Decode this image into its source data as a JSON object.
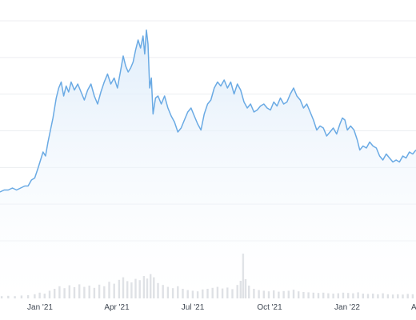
{
  "chart_data": {
    "type": "line",
    "title": "",
    "xlabel": "",
    "ylabel": "",
    "x_ticks": [
      "Jan '21",
      "Apr '21",
      "Jul '21",
      "Oct '21",
      "Jan '22",
      "A"
    ],
    "y_gridlines": 7,
    "grid": true,
    "legend": "none",
    "colors": {
      "line": "#6aaae4",
      "area_top": "#dcebfa",
      "area_bottom": "#ffffff",
      "volume": "#d6d9de",
      "grid": "#eceef1",
      "axis_text": "#3f4752"
    },
    "x_range": [
      "2020-11-18",
      "2022-04-05"
    ],
    "price_range": [
      -1.0,
      10.0
    ],
    "series": [
      {
        "values": [
          [
            "2020-11-18",
            1.4
          ],
          [
            "2020-11-23",
            1.5
          ],
          [
            "2020-11-28",
            1.5
          ],
          [
            "2020-12-03",
            1.6
          ],
          [
            "2020-12-08",
            1.5
          ],
          [
            "2020-12-13",
            1.6
          ],
          [
            "2020-12-18",
            1.7
          ],
          [
            "2020-12-22",
            1.7
          ],
          [
            "2020-12-26",
            2.0
          ],
          [
            "2020-12-30",
            2.1
          ],
          [
            "2021-01-03",
            2.6
          ],
          [
            "2021-01-06",
            3.0
          ],
          [
            "2021-01-09",
            3.4
          ],
          [
            "2021-01-12",
            3.2
          ],
          [
            "2021-01-15",
            3.9
          ],
          [
            "2021-01-18",
            4.5
          ],
          [
            "2021-01-21",
            5.1
          ],
          [
            "2021-01-25",
            6.1
          ],
          [
            "2021-01-28",
            6.6
          ],
          [
            "2021-01-31",
            6.9
          ],
          [
            "2021-02-03",
            6.2
          ],
          [
            "2021-02-06",
            6.7
          ],
          [
            "2021-02-09",
            6.4
          ],
          [
            "2021-02-12",
            6.9
          ],
          [
            "2021-02-16",
            6.5
          ],
          [
            "2021-02-20",
            6.8
          ],
          [
            "2021-02-24",
            6.4
          ],
          [
            "2021-02-28",
            6.0
          ],
          [
            "2021-03-04",
            6.5
          ],
          [
            "2021-03-08",
            6.8
          ],
          [
            "2021-03-12",
            6.2
          ],
          [
            "2021-03-16",
            5.8
          ],
          [
            "2021-03-20",
            6.4
          ],
          [
            "2021-03-24",
            6.9
          ],
          [
            "2021-03-28",
            7.3
          ],
          [
            "2021-04-01",
            6.8
          ],
          [
            "2021-04-05",
            7.1
          ],
          [
            "2021-04-09",
            6.6
          ],
          [
            "2021-04-13",
            7.5
          ],
          [
            "2021-04-16",
            8.2
          ],
          [
            "2021-04-19",
            7.7
          ],
          [
            "2021-04-22",
            7.4
          ],
          [
            "2021-04-25",
            7.6
          ],
          [
            "2021-04-28",
            7.9
          ],
          [
            "2021-05-01",
            8.5
          ],
          [
            "2021-05-04",
            9.0
          ],
          [
            "2021-05-07",
            8.6
          ],
          [
            "2021-05-10",
            9.2
          ],
          [
            "2021-05-12",
            8.3
          ],
          [
            "2021-05-14",
            9.5
          ],
          [
            "2021-05-16",
            8.8
          ],
          [
            "2021-05-18",
            6.6
          ],
          [
            "2021-05-20",
            7.1
          ],
          [
            "2021-05-22",
            5.3
          ],
          [
            "2021-05-25",
            6.1
          ],
          [
            "2021-05-28",
            6.2
          ],
          [
            "2021-06-01",
            5.8
          ],
          [
            "2021-06-05",
            6.2
          ],
          [
            "2021-06-09",
            5.6
          ],
          [
            "2021-06-13",
            5.2
          ],
          [
            "2021-06-17",
            4.9
          ],
          [
            "2021-06-21",
            4.4
          ],
          [
            "2021-06-25",
            4.6
          ],
          [
            "2021-06-29",
            5.0
          ],
          [
            "2021-07-03",
            5.4
          ],
          [
            "2021-07-07",
            5.6
          ],
          [
            "2021-07-11",
            5.2
          ],
          [
            "2021-07-15",
            4.8
          ],
          [
            "2021-07-19",
            4.5
          ],
          [
            "2021-07-23",
            5.3
          ],
          [
            "2021-07-27",
            5.8
          ],
          [
            "2021-07-31",
            6.0
          ],
          [
            "2021-08-04",
            6.6
          ],
          [
            "2021-08-08",
            6.9
          ],
          [
            "2021-08-12",
            6.7
          ],
          [
            "2021-08-16",
            7.0
          ],
          [
            "2021-08-20",
            6.6
          ],
          [
            "2021-08-24",
            6.9
          ],
          [
            "2021-08-28",
            6.3
          ],
          [
            "2021-09-01",
            6.8
          ],
          [
            "2021-09-05",
            6.5
          ],
          [
            "2021-09-09",
            5.9
          ],
          [
            "2021-09-13",
            5.6
          ],
          [
            "2021-09-17",
            5.8
          ],
          [
            "2021-09-21",
            5.4
          ],
          [
            "2021-09-25",
            5.5
          ],
          [
            "2021-09-29",
            5.7
          ],
          [
            "2021-10-03",
            5.8
          ],
          [
            "2021-10-07",
            5.6
          ],
          [
            "2021-10-11",
            5.5
          ],
          [
            "2021-10-15",
            5.9
          ],
          [
            "2021-10-19",
            5.7
          ],
          [
            "2021-10-23",
            6.1
          ],
          [
            "2021-10-27",
            5.8
          ],
          [
            "2021-10-31",
            5.9
          ],
          [
            "2021-11-04",
            6.3
          ],
          [
            "2021-11-08",
            6.6
          ],
          [
            "2021-11-12",
            6.2
          ],
          [
            "2021-11-16",
            6.0
          ],
          [
            "2021-11-20",
            5.6
          ],
          [
            "2021-11-24",
            5.8
          ],
          [
            "2021-11-28",
            5.4
          ],
          [
            "2021-12-02",
            5.0
          ],
          [
            "2021-12-06",
            4.5
          ],
          [
            "2021-12-10",
            4.7
          ],
          [
            "2021-12-14",
            4.6
          ],
          [
            "2021-12-18",
            4.2
          ],
          [
            "2021-12-22",
            4.4
          ],
          [
            "2021-12-26",
            4.6
          ],
          [
            "2021-12-30",
            4.3
          ],
          [
            "2022-01-03",
            4.8
          ],
          [
            "2022-01-06",
            5.1
          ],
          [
            "2022-01-09",
            5.0
          ],
          [
            "2022-01-12",
            4.5
          ],
          [
            "2022-01-16",
            4.7
          ],
          [
            "2022-01-20",
            4.5
          ],
          [
            "2022-01-24",
            4.0
          ],
          [
            "2022-01-27",
            3.5
          ],
          [
            "2022-01-31",
            3.7
          ],
          [
            "2022-02-04",
            3.6
          ],
          [
            "2022-02-08",
            3.9
          ],
          [
            "2022-02-12",
            3.7
          ],
          [
            "2022-02-16",
            3.6
          ],
          [
            "2022-02-20",
            3.2
          ],
          [
            "2022-02-24",
            3.0
          ],
          [
            "2022-02-28",
            3.3
          ],
          [
            "2022-03-04",
            3.1
          ],
          [
            "2022-03-08",
            2.9
          ],
          [
            "2022-03-12",
            3.0
          ],
          [
            "2022-03-16",
            2.9
          ],
          [
            "2022-03-20",
            3.2
          ],
          [
            "2022-03-24",
            3.1
          ],
          [
            "2022-03-28",
            3.4
          ],
          [
            "2022-04-01",
            3.3
          ],
          [
            "2022-04-05",
            3.5
          ]
        ]
      }
    ],
    "volume": {
      "range": [
        0,
        2.0
      ],
      "values": [
        [
          "2020-11-20",
          0.07
        ],
        [
          "2020-11-28",
          0.08
        ],
        [
          "2020-12-06",
          0.07
        ],
        [
          "2020-12-14",
          0.09
        ],
        [
          "2020-12-22",
          0.1
        ],
        [
          "2020-12-30",
          0.13
        ],
        [
          "2021-01-05",
          0.18
        ],
        [
          "2021-01-11",
          0.15
        ],
        [
          "2021-01-17",
          0.24
        ],
        [
          "2021-01-23",
          0.3
        ],
        [
          "2021-01-29",
          0.38
        ],
        [
          "2021-02-04",
          0.32
        ],
        [
          "2021-02-10",
          0.41
        ],
        [
          "2021-02-16",
          0.35
        ],
        [
          "2021-02-22",
          0.44
        ],
        [
          "2021-02-28",
          0.36
        ],
        [
          "2021-03-06",
          0.4
        ],
        [
          "2021-03-12",
          0.33
        ],
        [
          "2021-03-18",
          0.43
        ],
        [
          "2021-03-24",
          0.38
        ],
        [
          "2021-03-30",
          0.52
        ],
        [
          "2021-04-05",
          0.46
        ],
        [
          "2021-04-11",
          0.58
        ],
        [
          "2021-04-16",
          0.66
        ],
        [
          "2021-04-21",
          0.54
        ],
        [
          "2021-04-26",
          0.5
        ],
        [
          "2021-05-01",
          0.61
        ],
        [
          "2021-05-06",
          0.57
        ],
        [
          "2021-05-11",
          0.7
        ],
        [
          "2021-05-15",
          0.62
        ],
        [
          "2021-05-19",
          0.76
        ],
        [
          "2021-05-23",
          0.66
        ],
        [
          "2021-05-28",
          0.48
        ],
        [
          "2021-06-03",
          0.42
        ],
        [
          "2021-06-09",
          0.36
        ],
        [
          "2021-06-15",
          0.32
        ],
        [
          "2021-06-21",
          0.38
        ],
        [
          "2021-06-27",
          0.3
        ],
        [
          "2021-07-03",
          0.26
        ],
        [
          "2021-07-09",
          0.24
        ],
        [
          "2021-07-15",
          0.22
        ],
        [
          "2021-07-21",
          0.28
        ],
        [
          "2021-07-27",
          0.3
        ],
        [
          "2021-08-02",
          0.33
        ],
        [
          "2021-08-08",
          0.36
        ],
        [
          "2021-08-14",
          0.31
        ],
        [
          "2021-08-20",
          0.34
        ],
        [
          "2021-08-26",
          0.29
        ],
        [
          "2021-09-01",
          0.42
        ],
        [
          "2021-09-05",
          0.55
        ],
        [
          "2021-09-08",
          1.4
        ],
        [
          "2021-09-11",
          0.6
        ],
        [
          "2021-09-15",
          0.4
        ],
        [
          "2021-09-21",
          0.3
        ],
        [
          "2021-09-27",
          0.26
        ],
        [
          "2021-10-03",
          0.24
        ],
        [
          "2021-10-09",
          0.22
        ],
        [
          "2021-10-15",
          0.25
        ],
        [
          "2021-10-21",
          0.21
        ],
        [
          "2021-10-27",
          0.23
        ],
        [
          "2021-11-02",
          0.24
        ],
        [
          "2021-11-08",
          0.27
        ],
        [
          "2021-11-14",
          0.22
        ],
        [
          "2021-11-20",
          0.2
        ],
        [
          "2021-11-26",
          0.19
        ],
        [
          "2021-12-02",
          0.18
        ],
        [
          "2021-12-08",
          0.17
        ],
        [
          "2021-12-14",
          0.18
        ],
        [
          "2021-12-20",
          0.16
        ],
        [
          "2021-12-26",
          0.15
        ],
        [
          "2022-01-01",
          0.16
        ],
        [
          "2022-01-07",
          0.18
        ],
        [
          "2022-01-13",
          0.17
        ],
        [
          "2022-01-19",
          0.16
        ],
        [
          "2022-01-25",
          0.19
        ],
        [
          "2022-01-31",
          0.15
        ],
        [
          "2022-02-06",
          0.14
        ],
        [
          "2022-02-12",
          0.15
        ],
        [
          "2022-02-18",
          0.13
        ],
        [
          "2022-02-24",
          0.16
        ],
        [
          "2022-03-02",
          0.13
        ],
        [
          "2022-03-08",
          0.12
        ],
        [
          "2022-03-14",
          0.13
        ],
        [
          "2022-03-20",
          0.12
        ],
        [
          "2022-03-26",
          0.14
        ],
        [
          "2022-04-01",
          0.13
        ]
      ]
    }
  }
}
